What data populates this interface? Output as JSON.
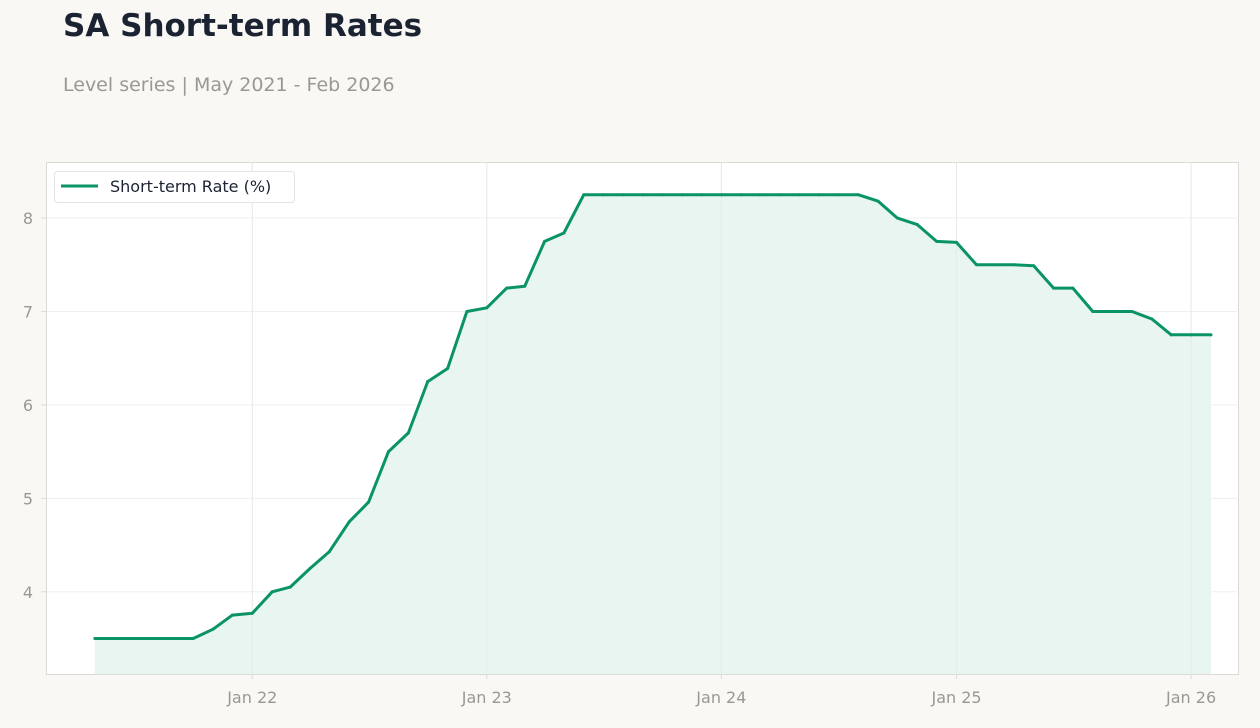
{
  "title": "SA Short-term Rates",
  "subtitle": "Level series | May 2021 - Feb 2026",
  "colors": {
    "background": "#f9f8f5",
    "plot_background": "#ffffff",
    "line": "#0a9466",
    "fill": "#e9f5f0",
    "grid": "#efefef",
    "axis_text": "#999893",
    "title": "#1b2333"
  },
  "chart_data": {
    "type": "area",
    "title": "SA Short-term Rates",
    "subtitle": "Level series | May 2021 - Feb 2026",
    "xlabel": "",
    "ylabel": "",
    "x_ticks": [
      {
        "label": "Jan 22",
        "date": "2022-01-01"
      },
      {
        "label": "Jan 23",
        "date": "2023-01-01"
      },
      {
        "label": "Jan 24",
        "date": "2024-01-01"
      },
      {
        "label": "Jan 25",
        "date": "2025-01-01"
      },
      {
        "label": "Jan 26",
        "date": "2026-01-01"
      }
    ],
    "xlim": [
      "2021-02-14",
      "2026-03-15"
    ],
    "y_ticks": [
      4,
      5,
      6,
      7,
      8
    ],
    "ylim": [
      3.12,
      8.6
    ],
    "grid": true,
    "legend": {
      "position": "top-left",
      "entries": [
        "Short-term Rate (%)"
      ]
    },
    "series": [
      {
        "name": "Short-term Rate (%)",
        "x": [
          "2021-05-01",
          "2021-06-01",
          "2021-07-01",
          "2021-08-01",
          "2021-09-01",
          "2021-10-01",
          "2021-11-01",
          "2021-12-01",
          "2022-01-01",
          "2022-02-01",
          "2022-03-01",
          "2022-04-01",
          "2022-05-01",
          "2022-06-01",
          "2022-07-01",
          "2022-08-01",
          "2022-09-01",
          "2022-10-01",
          "2022-11-01",
          "2022-12-01",
          "2023-01-01",
          "2023-02-01",
          "2023-03-01",
          "2023-04-01",
          "2023-05-01",
          "2023-06-01",
          "2023-07-01",
          "2023-08-01",
          "2023-09-01",
          "2023-10-01",
          "2023-11-01",
          "2023-12-01",
          "2024-01-01",
          "2024-02-01",
          "2024-03-01",
          "2024-04-01",
          "2024-05-01",
          "2024-06-01",
          "2024-07-01",
          "2024-08-01",
          "2024-09-01",
          "2024-10-01",
          "2024-11-01",
          "2024-12-01",
          "2025-01-01",
          "2025-02-01",
          "2025-03-01",
          "2025-04-01",
          "2025-05-01",
          "2025-06-01",
          "2025-07-01",
          "2025-08-01",
          "2025-09-01",
          "2025-10-01",
          "2025-11-01",
          "2025-12-01",
          "2026-01-01",
          "2026-02-01"
        ],
        "values": [
          3.5,
          3.5,
          3.5,
          3.5,
          3.5,
          3.5,
          3.6,
          3.75,
          3.77,
          4.0,
          4.05,
          4.25,
          4.43,
          4.75,
          4.96,
          5.5,
          5.7,
          6.25,
          6.39,
          7.0,
          7.04,
          7.25,
          7.27,
          7.75,
          7.84,
          8.25,
          8.25,
          8.25,
          8.25,
          8.25,
          8.25,
          8.25,
          8.25,
          8.25,
          8.25,
          8.25,
          8.25,
          8.25,
          8.25,
          8.25,
          8.18,
          8.0,
          7.93,
          7.75,
          7.74,
          7.5,
          7.5,
          7.5,
          7.49,
          7.25,
          7.25,
          7.0,
          7.0,
          7.0,
          6.92,
          6.75,
          6.75,
          6.75
        ]
      }
    ]
  }
}
